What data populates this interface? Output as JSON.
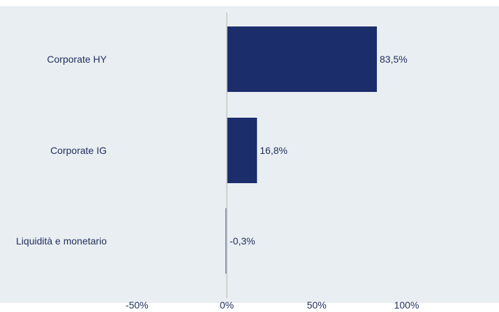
{
  "chart_data": {
    "type": "bar",
    "orientation": "horizontal",
    "categories": [
      "Corporate HY",
      "Corporate IG",
      "Liquidità e monetario"
    ],
    "values": [
      83.5,
      16.8,
      -0.3
    ],
    "value_labels": [
      "83,5%",
      "16,8%",
      "-0,3%"
    ],
    "xlim": [
      -50,
      125
    ],
    "xticks": [
      -50,
      0,
      50,
      100
    ],
    "xtick_labels": [
      "-50%",
      "0%",
      "50%",
      "100%"
    ],
    "title": "",
    "xlabel": "",
    "ylabel": "",
    "grid": false,
    "legend": "none"
  },
  "colors": {
    "plot_background": "#e9eef2",
    "bar": "#1b2d6b",
    "negative_bar": "#6b73b8",
    "zero_line": "#c8c8c8",
    "text": "#1f2d5c"
  }
}
